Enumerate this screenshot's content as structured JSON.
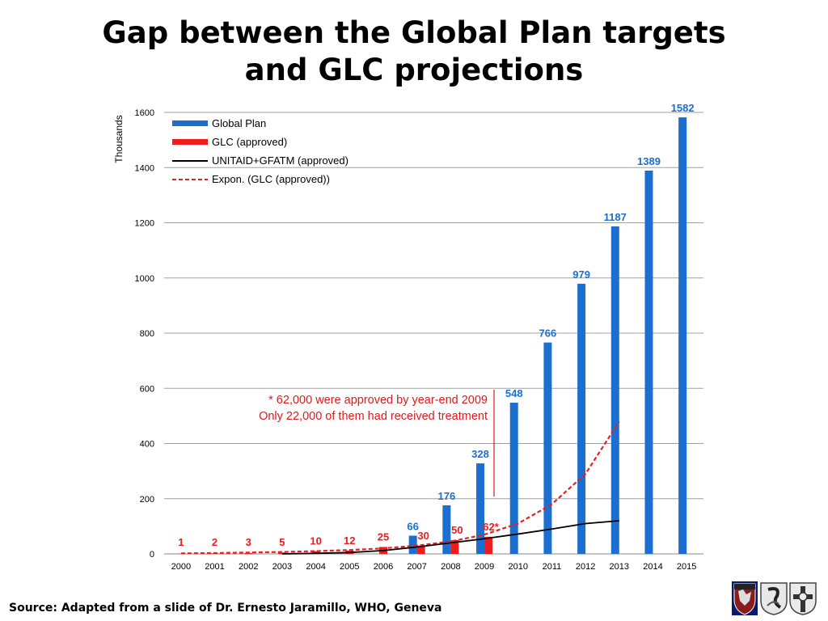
{
  "title": {
    "line1": "Gap between the Global Plan targets",
    "line2": "and GLC projections"
  },
  "chart_data": {
    "type": "bar",
    "ylabel": "Thousands",
    "ylim": [
      0,
      1600
    ],
    "yticks": [
      0,
      200,
      400,
      600,
      800,
      1000,
      1200,
      1400,
      1600
    ],
    "grid": true,
    "legend_position": "top-left",
    "categories": [
      "2000",
      "2001",
      "2002",
      "2003",
      "2004",
      "2005",
      "2006",
      "2007",
      "2008",
      "2009",
      "2010",
      "2011",
      "2012",
      "2013",
      "2014",
      "2015"
    ],
    "series": [
      {
        "name": "Global Plan",
        "kind": "bar",
        "color": "#1b6fd0",
        "values": [
          null,
          null,
          null,
          null,
          null,
          null,
          null,
          66,
          176,
          328,
          548,
          766,
          979,
          1187,
          1389,
          1582
        ],
        "labels": [
          null,
          null,
          null,
          null,
          null,
          null,
          null,
          "66",
          "176",
          "328",
          "548",
          "766",
          "979",
          "1187",
          "1389",
          "1582"
        ]
      },
      {
        "name": "GLC (approved)",
        "kind": "bar",
        "color": "#ee1c1c",
        "values": [
          1,
          2,
          3,
          5,
          10,
          12,
          25,
          30,
          50,
          62,
          null,
          null,
          null,
          null,
          null,
          null
        ],
        "labels": [
          "1",
          "2",
          "3",
          "5",
          "10",
          "12",
          "25",
          "30",
          "50",
          "62*",
          null,
          null,
          null,
          null,
          null,
          null
        ]
      },
      {
        "name": "UNITAID+GFATM  (approved)",
        "kind": "line",
        "color": "#000000",
        "values": [
          null,
          null,
          null,
          0,
          2,
          5,
          12,
          25,
          40,
          55,
          72,
          90,
          110,
          120,
          null,
          null
        ]
      },
      {
        "name": "Expon. (GLC (approved))",
        "kind": "dashed-line",
        "color": "#e62020",
        "values": [
          2,
          3,
          5,
          7,
          10,
          14,
          20,
          30,
          45,
          70,
          110,
          180,
          290,
          480,
          null,
          null
        ]
      }
    ],
    "annotation": {
      "line1": "* 62,000 were approved by year-end 2009",
      "line2": "Only 22,000 of them had received treatment",
      "color": "#e0181c"
    }
  },
  "source": "Source: Adapted from a slide of Dr. Ernesto Jaramillo, WHO, Geneva",
  "logos": [
    "crest-logo",
    "swan-logo",
    "cross-logo"
  ]
}
